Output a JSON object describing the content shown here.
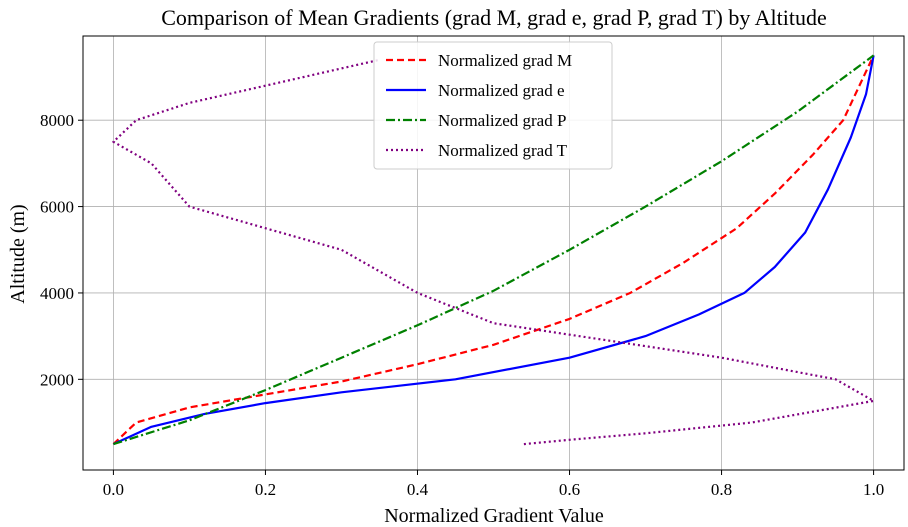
{
  "chart_data": {
    "type": "line",
    "title": "Comparison of Mean Gradients (grad M, grad e, grad P, grad T) by Altitude",
    "xlabel": "Normalized Gradient Value",
    "ylabel": "Altitude (m)",
    "xlim": [
      -0.04,
      1.04
    ],
    "ylim": [
      -100,
      9950
    ],
    "xticks": [
      0.0,
      0.2,
      0.4,
      0.6,
      0.8,
      1.0
    ],
    "xtick_labels": [
      "0.0",
      "0.2",
      "0.4",
      "0.6",
      "0.8",
      "1.0"
    ],
    "yticks": [
      2000,
      4000,
      6000,
      8000
    ],
    "ytick_labels": [
      "2000",
      "4000",
      "6000",
      "8000"
    ],
    "grid": true,
    "legend_position": "top-center",
    "series": [
      {
        "name": "Normalized grad M",
        "color": "#ff0000",
        "style": "dashed",
        "points": [
          [
            0.0,
            500
          ],
          [
            0.03,
            1000
          ],
          [
            0.1,
            1350
          ],
          [
            0.2,
            1650
          ],
          [
            0.3,
            1950
          ],
          [
            0.4,
            2350
          ],
          [
            0.5,
            2800
          ],
          [
            0.6,
            3400
          ],
          [
            0.68,
            4000
          ],
          [
            0.75,
            4700
          ],
          [
            0.82,
            5500
          ],
          [
            0.87,
            6300
          ],
          [
            0.92,
            7200
          ],
          [
            0.96,
            8000
          ],
          [
            1.0,
            9500
          ]
        ]
      },
      {
        "name": "Normalized grad e",
        "color": "#0000ff",
        "style": "solid",
        "points": [
          [
            0.0,
            500
          ],
          [
            0.05,
            900
          ],
          [
            0.12,
            1200
          ],
          [
            0.2,
            1450
          ],
          [
            0.3,
            1700
          ],
          [
            0.45,
            2000
          ],
          [
            0.6,
            2500
          ],
          [
            0.7,
            3000
          ],
          [
            0.77,
            3500
          ],
          [
            0.83,
            4000
          ],
          [
            0.87,
            4600
          ],
          [
            0.91,
            5400
          ],
          [
            0.94,
            6400
          ],
          [
            0.97,
            7600
          ],
          [
            0.99,
            8600
          ],
          [
            1.0,
            9500
          ]
        ]
      },
      {
        "name": "Normalized grad P",
        "color": "#008000",
        "style": "dashdot",
        "points": [
          [
            0.0,
            500
          ],
          [
            0.1,
            1050
          ],
          [
            0.2,
            1750
          ],
          [
            0.3,
            2500
          ],
          [
            0.4,
            3250
          ],
          [
            0.5,
            4050
          ],
          [
            0.6,
            5000
          ],
          [
            0.7,
            6000
          ],
          [
            0.8,
            7050
          ],
          [
            0.9,
            8200
          ],
          [
            1.0,
            9500
          ]
        ]
      },
      {
        "name": "Normalized grad T",
        "color": "#800080",
        "style": "dotted",
        "points": [
          [
            0.54,
            500
          ],
          [
            0.6,
            600
          ],
          [
            0.7,
            750
          ],
          [
            0.84,
            1000
          ],
          [
            0.92,
            1250
          ],
          [
            1.0,
            1500
          ],
          [
            0.95,
            2000
          ],
          [
            0.8,
            2500
          ],
          [
            0.65,
            2900
          ],
          [
            0.5,
            3300
          ],
          [
            0.4,
            4000
          ],
          [
            0.3,
            5000
          ],
          [
            0.2,
            5500
          ],
          [
            0.1,
            6000
          ],
          [
            0.05,
            7000
          ],
          [
            0.0,
            7500
          ],
          [
            0.03,
            8000
          ],
          [
            0.1,
            8400
          ],
          [
            0.2,
            8800
          ],
          [
            0.3,
            9200
          ],
          [
            0.35,
            9400
          ]
        ]
      }
    ]
  }
}
